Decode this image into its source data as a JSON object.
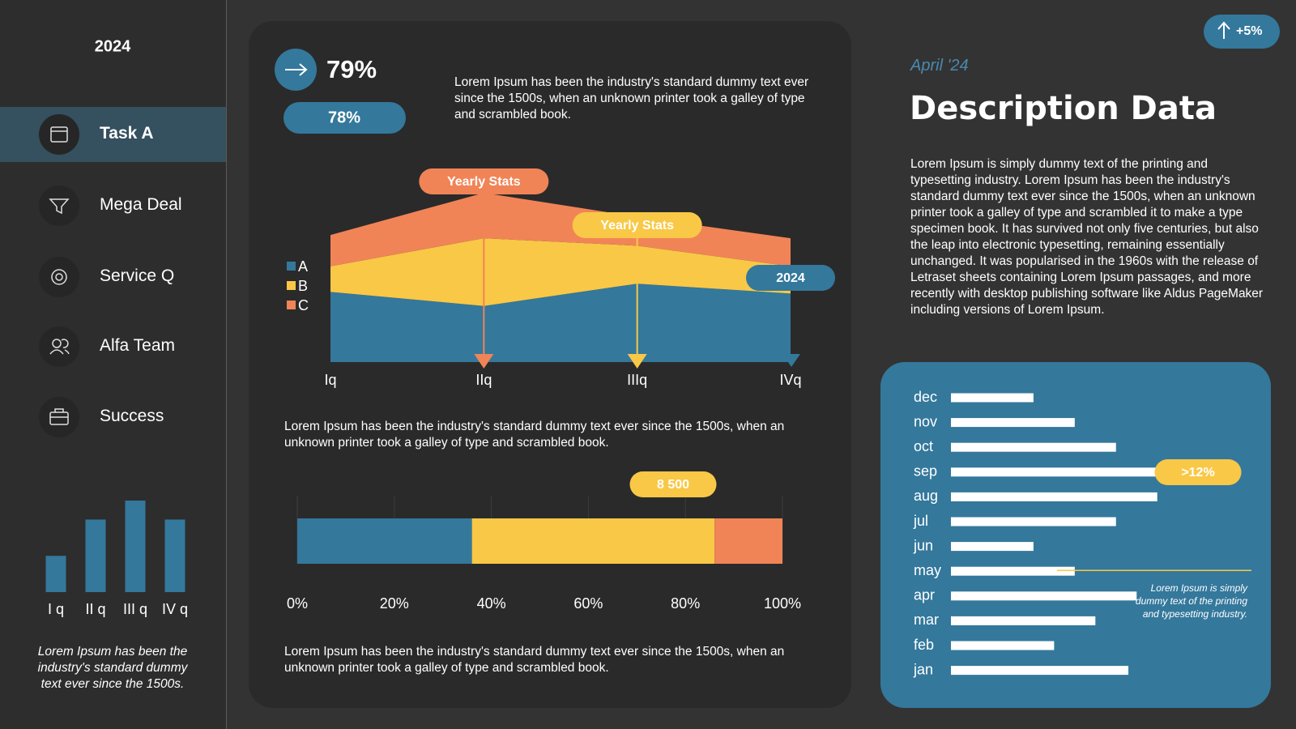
{
  "sidebar": {
    "year": "2024",
    "menu": [
      "Task A",
      "Mega Deal",
      "Service Q",
      "Alfa Team",
      "Success"
    ],
    "note": "Lorem Ipsum has been the industry's standard dummy text ever since the 1500s."
  },
  "card": {
    "headline": "79%",
    "pill": "78%",
    "text_top": "Lorem Ipsum has been the industry's standard dummy text ever since the 1500s, when an unknown printer took a galley of type and scrambled book.",
    "text_middle": "Lorem Ipsum has been the industry's standard dummy text ever since the 1500s, when an unknown printer took a galley of type and scrambled book.",
    "text_bottom": "Lorem Ipsum has been the industry's standard dummy text ever since the 1500s, when an unknown printer took a galley of type and scrambled book."
  },
  "header": {
    "badge": "+5%",
    "date": "April '24",
    "title": "Description Data",
    "paragraph": "Lorem Ipsum is simply dummy text of the printing and typesetting industry. Lorem Ipsum has been the industry's standard dummy text ever since the 1500s, when an unknown printer took a galley of type and scrambled it to make a type specimen book. It has survived not only five centuries, but also the leap into electronic typesetting, remaining essentially unchanged. It was popularised in the 1960s with the release of Letraset sheets containing Lorem Ipsum passages, and more recently with desktop publishing software like Aldus PageMaker including versions of Lorem Ipsum."
  },
  "chart_data": [
    {
      "type": "bar",
      "categories": [
        "I q",
        "II q",
        "III q",
        "IV q"
      ],
      "values": [
        44,
        88,
        111,
        88
      ],
      "ylim": [
        0,
        111
      ],
      "color": "#34789c"
    },
    {
      "type": "area",
      "stacked": true,
      "categories": [
        "Iq",
        "IIq",
        "IIIq",
        "IVq"
      ],
      "series": [
        {
          "name": "A",
          "color": "#34789c",
          "values": [
            85,
            68,
            95,
            83
          ]
        },
        {
          "name": "B",
          "color": "#f9c846",
          "values": [
            31,
            82,
            46,
            33
          ]
        },
        {
          "name": "C",
          "color": "#f08457",
          "values": [
            38,
            55,
            35,
            34
          ]
        }
      ],
      "ylim": [
        0,
        210
      ],
      "annotations": [
        "Yearly Stats",
        "Yearly Stats",
        "2024"
      ]
    },
    {
      "type": "stacked_hbar",
      "series": [
        {
          "color": "#34789c",
          "values": [
            36
          ]
        },
        {
          "color": "#f9c846",
          "values": [
            50
          ]
        },
        {
          "color": "#f08457",
          "values": [
            14
          ]
        }
      ],
      "xlim": [
        0,
        100
      ],
      "xticks": [
        {
          "value": 0,
          "label": "0%"
        },
        {
          "value": 20,
          "label": "20%"
        },
        {
          "value": 40,
          "label": "40%"
        },
        {
          "value": 60,
          "label": "60%"
        },
        {
          "value": 80,
          "label": "80%"
        },
        {
          "value": 100,
          "label": "100%"
        }
      ],
      "grid": true,
      "annotation": "8 500"
    },
    {
      "type": "hbar",
      "categories": [
        "dec",
        "nov",
        "oct",
        "sep",
        "aug",
        "jul",
        "jun",
        "may",
        "apr",
        "mar",
        "feb",
        "jan"
      ],
      "values": [
        10,
        15,
        20,
        25,
        25,
        20,
        10,
        15,
        22.5,
        17.5,
        12.5,
        21.5
      ],
      "xlim": [
        0,
        37
      ],
      "color": "#ffffff",
      "annotation": ">12%",
      "note": "Lorem Ipsum is simply dummy text of the printing and typesetting industry."
    }
  ]
}
